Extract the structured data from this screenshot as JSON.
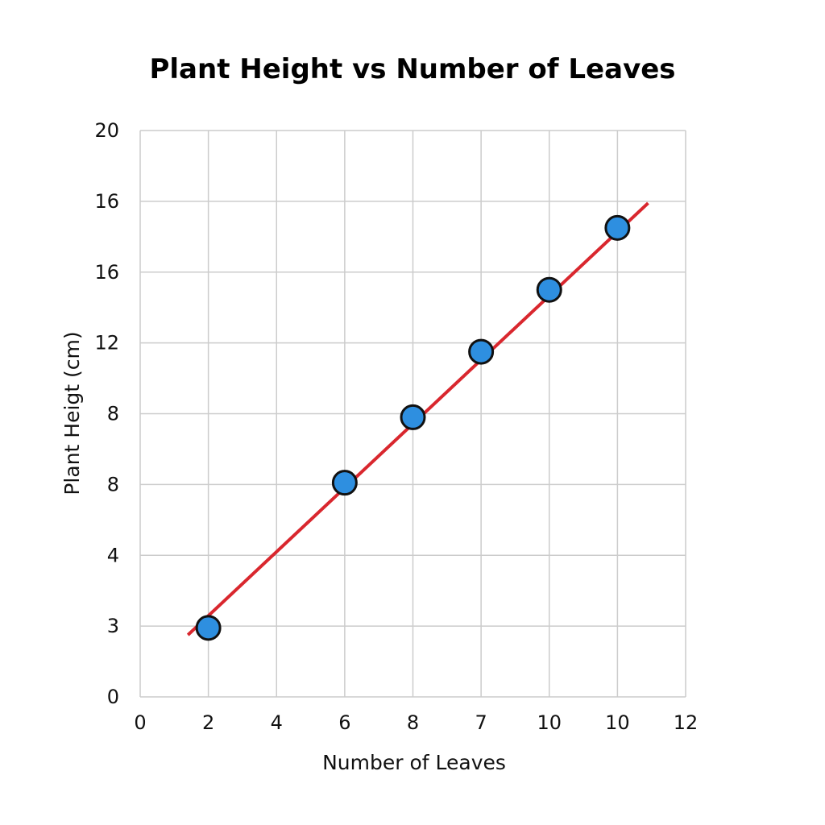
{
  "chart_data": {
    "type": "scatter",
    "title": "Plant Height vs Number of Leaves",
    "xlabel": "Number of Leaves",
    "ylabel": "Plant Heigt (cm)",
    "x_tick_labels": [
      "0",
      "2",
      "4",
      "6",
      "8",
      "7",
      "10",
      "10",
      "12"
    ],
    "y_tick_labels": [
      "0",
      "3",
      "4",
      "8",
      "8",
      "12",
      "16",
      "16",
      "20"
    ],
    "xlim": [
      0,
      16
    ],
    "ylim": [
      0,
      32
    ],
    "grid": true,
    "points": [
      {
        "x": 2,
        "y": 3.9
      },
      {
        "x": 6,
        "y": 12.1
      },
      {
        "x": 8,
        "y": 15.8
      },
      {
        "x": 10,
        "y": 19.5
      },
      {
        "x": 12,
        "y": 23.0
      },
      {
        "x": 14,
        "y": 26.5
      }
    ],
    "trendline": {
      "x": [
        1.4,
        14.9
      ],
      "y": [
        3.5,
        27.9
      ]
    },
    "colors": {
      "points": "#2e8fe0",
      "point_outline": "#111111",
      "trendline": "#d9272e",
      "grid": "#cccccc"
    }
  }
}
